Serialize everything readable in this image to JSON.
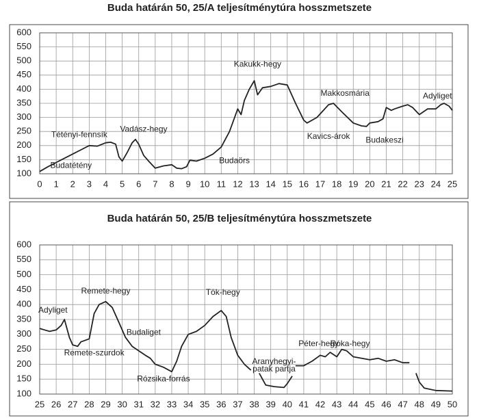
{
  "chart_data": [
    {
      "type": "line",
      "title": "Buda határán 50, 25/A teljesítménytúra hosszmetszete",
      "color": "#222222",
      "grid": true,
      "x": [
        0,
        0.5,
        1,
        1.5,
        2,
        2.5,
        3,
        3.5,
        4,
        4.3,
        4.6,
        4.8,
        5,
        5.3,
        5.6,
        5.8,
        6,
        6.3,
        6.6,
        7,
        7.5,
        8,
        8.3,
        8.6,
        8.9,
        9.1,
        9.5,
        10,
        10.5,
        11,
        11.5,
        12,
        12.2,
        12.4,
        12.7,
        13,
        13.2,
        13.5,
        14,
        14.5,
        15,
        15.5,
        16,
        16.2,
        16.8,
        17.5,
        17.8,
        18.3,
        19,
        19.5,
        19.8,
        20,
        20.5,
        20.8,
        21,
        21.3,
        21.5,
        22,
        22.3,
        22.6,
        23,
        23.5,
        24,
        24.3,
        24.5,
        24.8,
        25
      ],
      "values": [
        108,
        125,
        140,
        155,
        170,
        185,
        200,
        198,
        210,
        212,
        205,
        160,
        145,
        175,
        210,
        222,
        205,
        165,
        145,
        120,
        128,
        132,
        120,
        118,
        125,
        148,
        145,
        155,
        170,
        195,
        250,
        330,
        310,
        360,
        400,
        430,
        380,
        405,
        410,
        420,
        415,
        350,
        290,
        280,
        300,
        345,
        350,
        320,
        280,
        270,
        268,
        280,
        285,
        295,
        335,
        325,
        330,
        340,
        345,
        335,
        310,
        330,
        330,
        345,
        350,
        340,
        325
      ],
      "xlim": [
        0,
        25
      ],
      "ylim": [
        100,
        600
      ],
      "xticks": [
        0,
        1,
        2,
        3,
        4,
        5,
        6,
        7,
        8,
        9,
        10,
        11,
        12,
        13,
        14,
        15,
        16,
        17,
        18,
        19,
        20,
        21,
        22,
        23,
        24,
        25
      ],
      "yticks": [
        100,
        150,
        200,
        250,
        300,
        350,
        400,
        450,
        500,
        550,
        600
      ],
      "annotations": [
        "Budatétény",
        "Tétényi-fennsík",
        "Vadász-hegy",
        "Kakukk-hegy",
        "Budaörs",
        "Kavics-árok",
        "Makkosmária",
        "Budakeszi",
        "Adyliget"
      ]
    },
    {
      "type": "line",
      "title": "Buda határán 50, 25/B teljesítménytúra hosszmetszete",
      "color": "#222222",
      "grid": true,
      "x": [
        25,
        25.3,
        25.6,
        26,
        26.3,
        26.5,
        26.8,
        27,
        27.3,
        27.5,
        28,
        28.3,
        28.6,
        29,
        29.4,
        29.8,
        30.2,
        30.6,
        31,
        31.4,
        31.7,
        32,
        32.5,
        33,
        33.3,
        33.6,
        34,
        34.5,
        35,
        35.5,
        36,
        36.3,
        36.6,
        37,
        37.4,
        37.8,
        38,
        38.3,
        38.7,
        39.2,
        39.8,
        40,
        40.3,
        40.4,
        40.5,
        41,
        41.5,
        42,
        42.3,
        42.6,
        43,
        43.3,
        43.6,
        44,
        45,
        45.5,
        46,
        46.5,
        47,
        47.4,
        47.6,
        47.8,
        48,
        48.3,
        49,
        50
      ],
      "values": [
        320,
        315,
        310,
        315,
        330,
        350,
        290,
        265,
        260,
        275,
        285,
        370,
        400,
        410,
        390,
        340,
        290,
        260,
        245,
        230,
        220,
        200,
        190,
        175,
        210,
        260,
        300,
        310,
        330,
        360,
        380,
        360,
        290,
        230,
        200,
        180,
        null,
        170,
        130,
        125,
        122,
        135,
        160,
        null,
        195,
        195,
        210,
        230,
        225,
        240,
        225,
        250,
        245,
        225,
        215,
        220,
        210,
        215,
        205,
        205,
        null,
        170,
        140,
        120,
        112,
        110
      ],
      "xlim": [
        25,
        50
      ],
      "ylim": [
        100,
        600
      ],
      "xticks": [
        25,
        26,
        27,
        28,
        29,
        30,
        31,
        32,
        33,
        34,
        35,
        36,
        37,
        38,
        39,
        40,
        41,
        42,
        43,
        44,
        45,
        46,
        47,
        48,
        49,
        50
      ],
      "yticks": [
        100,
        150,
        200,
        250,
        300,
        350,
        400,
        450,
        500,
        550,
        600
      ],
      "annotations": [
        "Adyliget",
        "Remete-hegy",
        "Remete-szurdok",
        "Budaliget",
        "Rózsika-forrás",
        "Tök-hegy",
        "Aranyhegyi-",
        "patak partja",
        "Péter-hegy",
        "Róka-hegy"
      ]
    }
  ]
}
